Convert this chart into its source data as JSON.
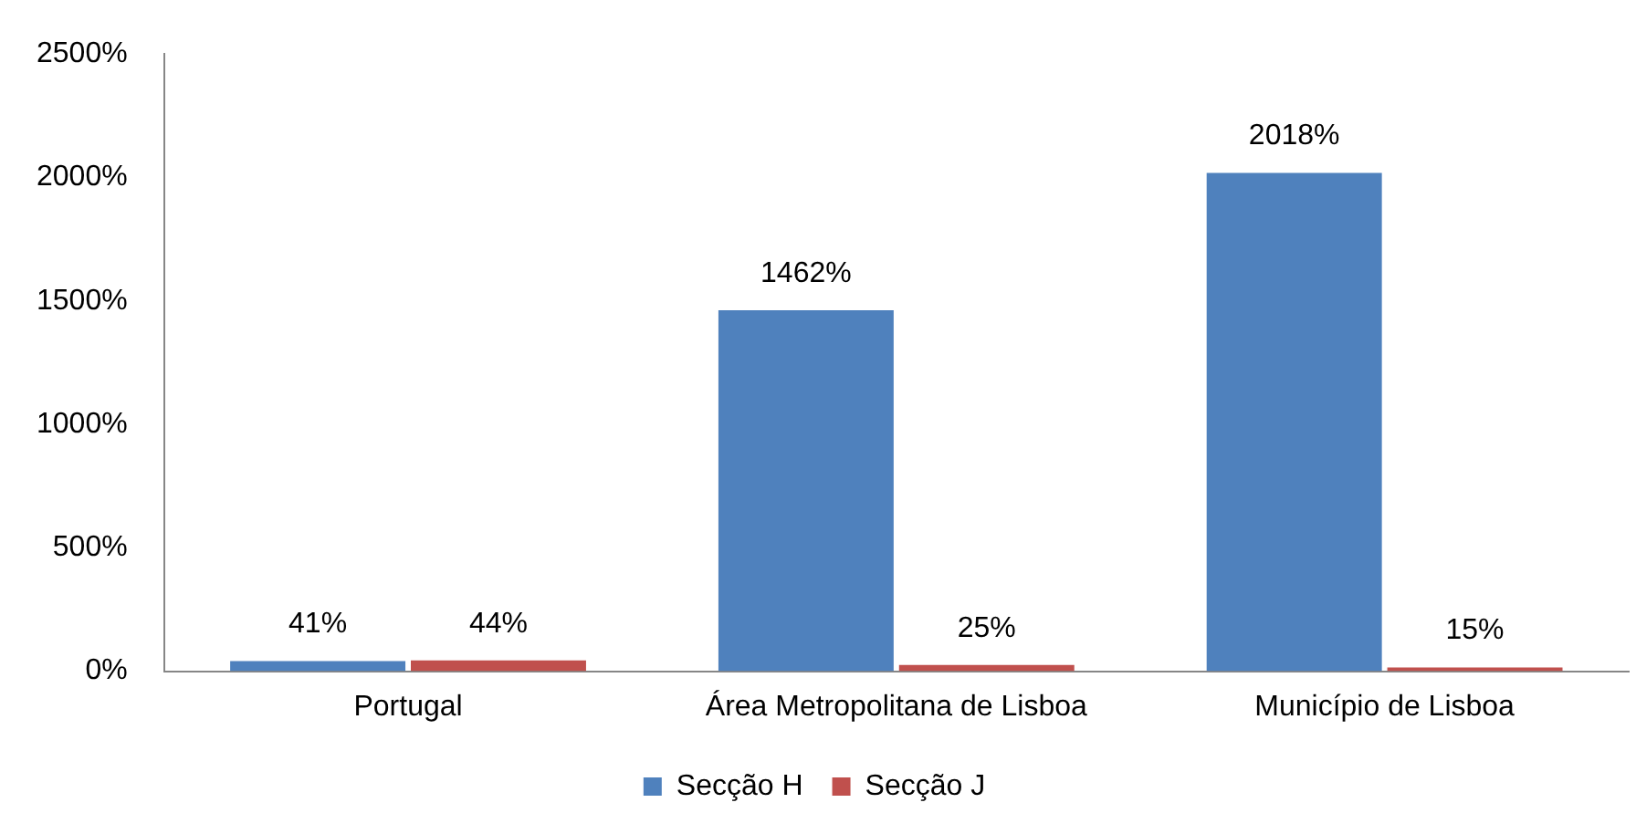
{
  "chart_data": {
    "type": "bar",
    "categories": [
      "Portugal",
      "Área Metropolitana de Lisboa",
      "Município de Lisboa"
    ],
    "series": [
      {
        "name": "Secção H",
        "color": "#4f81bd",
        "values": [
          41,
          1462,
          2018
        ],
        "value_labels": [
          "41%",
          "1462%",
          "2018%"
        ]
      },
      {
        "name": "Secção J",
        "color": "#c0504d",
        "values": [
          44,
          25,
          15
        ],
        "value_labels": [
          "44%",
          "25%",
          "15%"
        ]
      }
    ],
    "ylim": [
      0,
      2500
    ],
    "yticks": [
      {
        "value": 0,
        "label": "0%"
      },
      {
        "value": 500,
        "label": "500%"
      },
      {
        "value": 1000,
        "label": "1000%"
      },
      {
        "value": 1500,
        "label": "1500%"
      },
      {
        "value": 2000,
        "label": "2000%"
      },
      {
        "value": 2500,
        "label": "2500%"
      }
    ],
    "grid": false,
    "legend": "bottom"
  }
}
